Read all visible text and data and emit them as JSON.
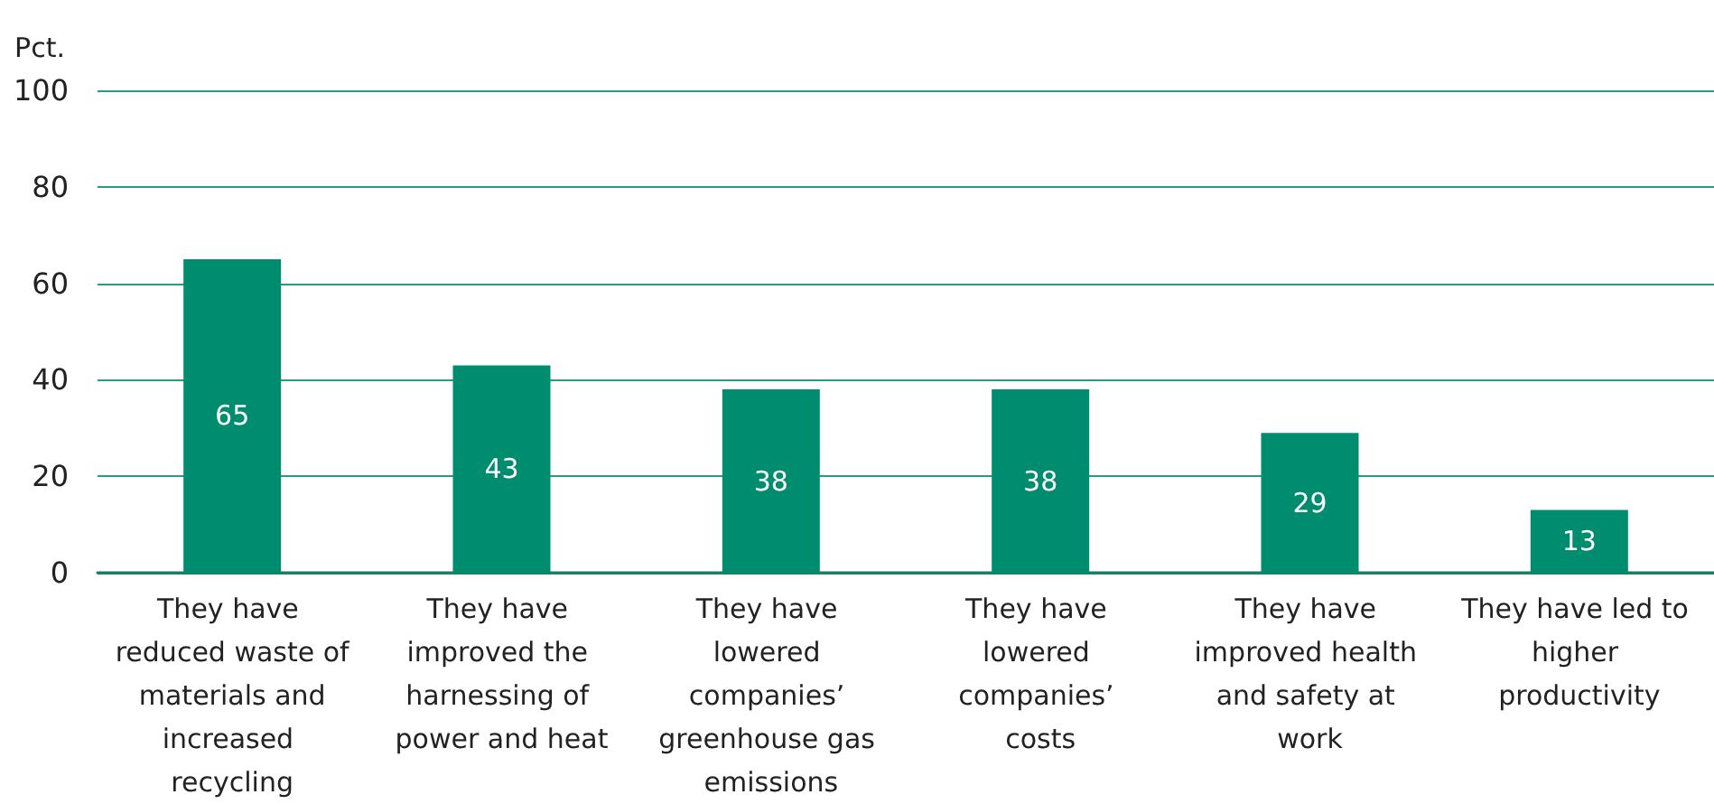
{
  "chart_data": {
    "type": "bar",
    "ylabel": "Pct.",
    "categories": [
      "They have reduced waste of materials and increased recycling",
      "They have improved the harnessing of power and heat",
      "They have lowered companies’ greenhouse gas emissions",
      "They have lowered companies’ costs",
      "They have improved health and safety at work",
      "They have led to higher productivity"
    ],
    "values": [
      65,
      43,
      38,
      38,
      29,
      13
    ],
    "color": "#008c6e",
    "ylim": [
      0,
      100
    ],
    "yticks": [
      0,
      20,
      40,
      60,
      80,
      100
    ],
    "grid": "y",
    "data_labels": true
  }
}
